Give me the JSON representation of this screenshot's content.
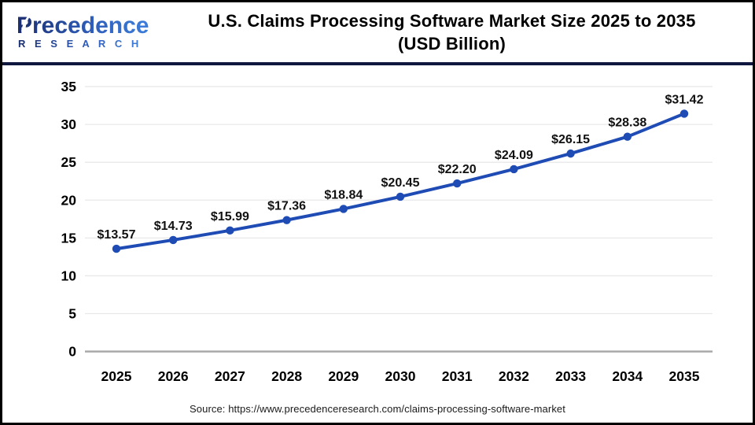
{
  "header": {
    "logo": {
      "brand": "Precedence",
      "sub": "R E S E A R C H",
      "navy": "#1b2d6e",
      "blue": "#3d7edb"
    },
    "title_line1": "U.S. Claims Processing Software Market Size 2025 to 2035",
    "title_line2": "(USD Billion)"
  },
  "chart_data": {
    "type": "line",
    "title": "U.S. Claims Processing Software Market Size 2025 to 2035 (USD Billion)",
    "categories": [
      "2025",
      "2026",
      "2027",
      "2028",
      "2029",
      "2030",
      "2031",
      "2032",
      "2033",
      "2034",
      "2035"
    ],
    "values": [
      13.57,
      14.73,
      15.99,
      17.36,
      18.84,
      20.45,
      22.2,
      24.09,
      26.15,
      28.38,
      31.42
    ],
    "point_labels": [
      "$13.57",
      "$14.73",
      "$15.99",
      "$17.36",
      "$18.84",
      "$20.45",
      "$22.20",
      "$24.09",
      "$26.15",
      "$28.38",
      "$31.42"
    ],
    "xlabel": "",
    "ylabel": "",
    "ylim": [
      0,
      35
    ],
    "yticks": [
      0,
      5,
      10,
      15,
      20,
      25,
      30,
      35
    ],
    "grid": true,
    "legend_position": "none",
    "line_color": "#1e4bb4",
    "marker_color": "#1e4bb4",
    "grid_color": "#e8e8e8",
    "axis_line_color": "#a9a9a9",
    "tick_label_color": "#000000",
    "point_label_color": "#111111"
  },
  "footer": {
    "source": "Source: https://www.precedenceresearch.com/claims-processing-software-market"
  }
}
